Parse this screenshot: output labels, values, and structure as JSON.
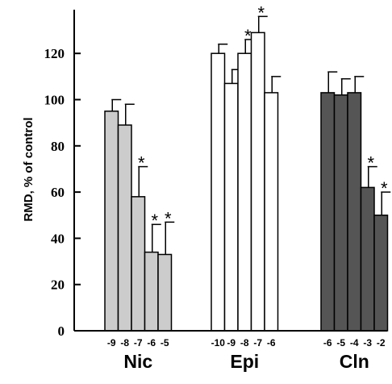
{
  "chart_data": {
    "type": "bar",
    "title": "",
    "ylabel": "RMD, % of control",
    "ylim": [
      0,
      140
    ],
    "yticks": [
      "0",
      "20",
      "40",
      "60",
      "80",
      "100",
      "120"
    ],
    "grid": false,
    "groups": [
      {
        "name": "Nic",
        "color": "#cccccc",
        "categories": [
          "-9",
          "-8",
          "-7",
          "-6",
          "-5"
        ],
        "values": [
          95,
          89,
          58,
          34,
          33
        ],
        "errors": [
          5,
          9,
          13,
          12,
          14
        ],
        "significant": [
          false,
          false,
          true,
          true,
          true
        ]
      },
      {
        "name": "Epi",
        "color": "#ffffff",
        "categories": [
          "-10",
          "-9",
          "-8",
          "-7",
          "-6"
        ],
        "values": [
          120,
          107,
          120,
          129,
          103
        ],
        "errors": [
          4,
          6,
          6,
          7,
          7
        ],
        "significant": [
          false,
          false,
          true,
          true,
          false
        ]
      },
      {
        "name": "Cln",
        "color": "#555555",
        "categories": [
          "-6",
          "-5",
          "-4",
          "-3",
          "-2"
        ],
        "values": [
          103,
          102,
          103,
          62,
          50
        ],
        "errors": [
          9,
          7,
          7,
          9,
          10
        ],
        "significant": [
          false,
          false,
          false,
          true,
          true
        ]
      }
    ],
    "significance_marker": "*"
  }
}
